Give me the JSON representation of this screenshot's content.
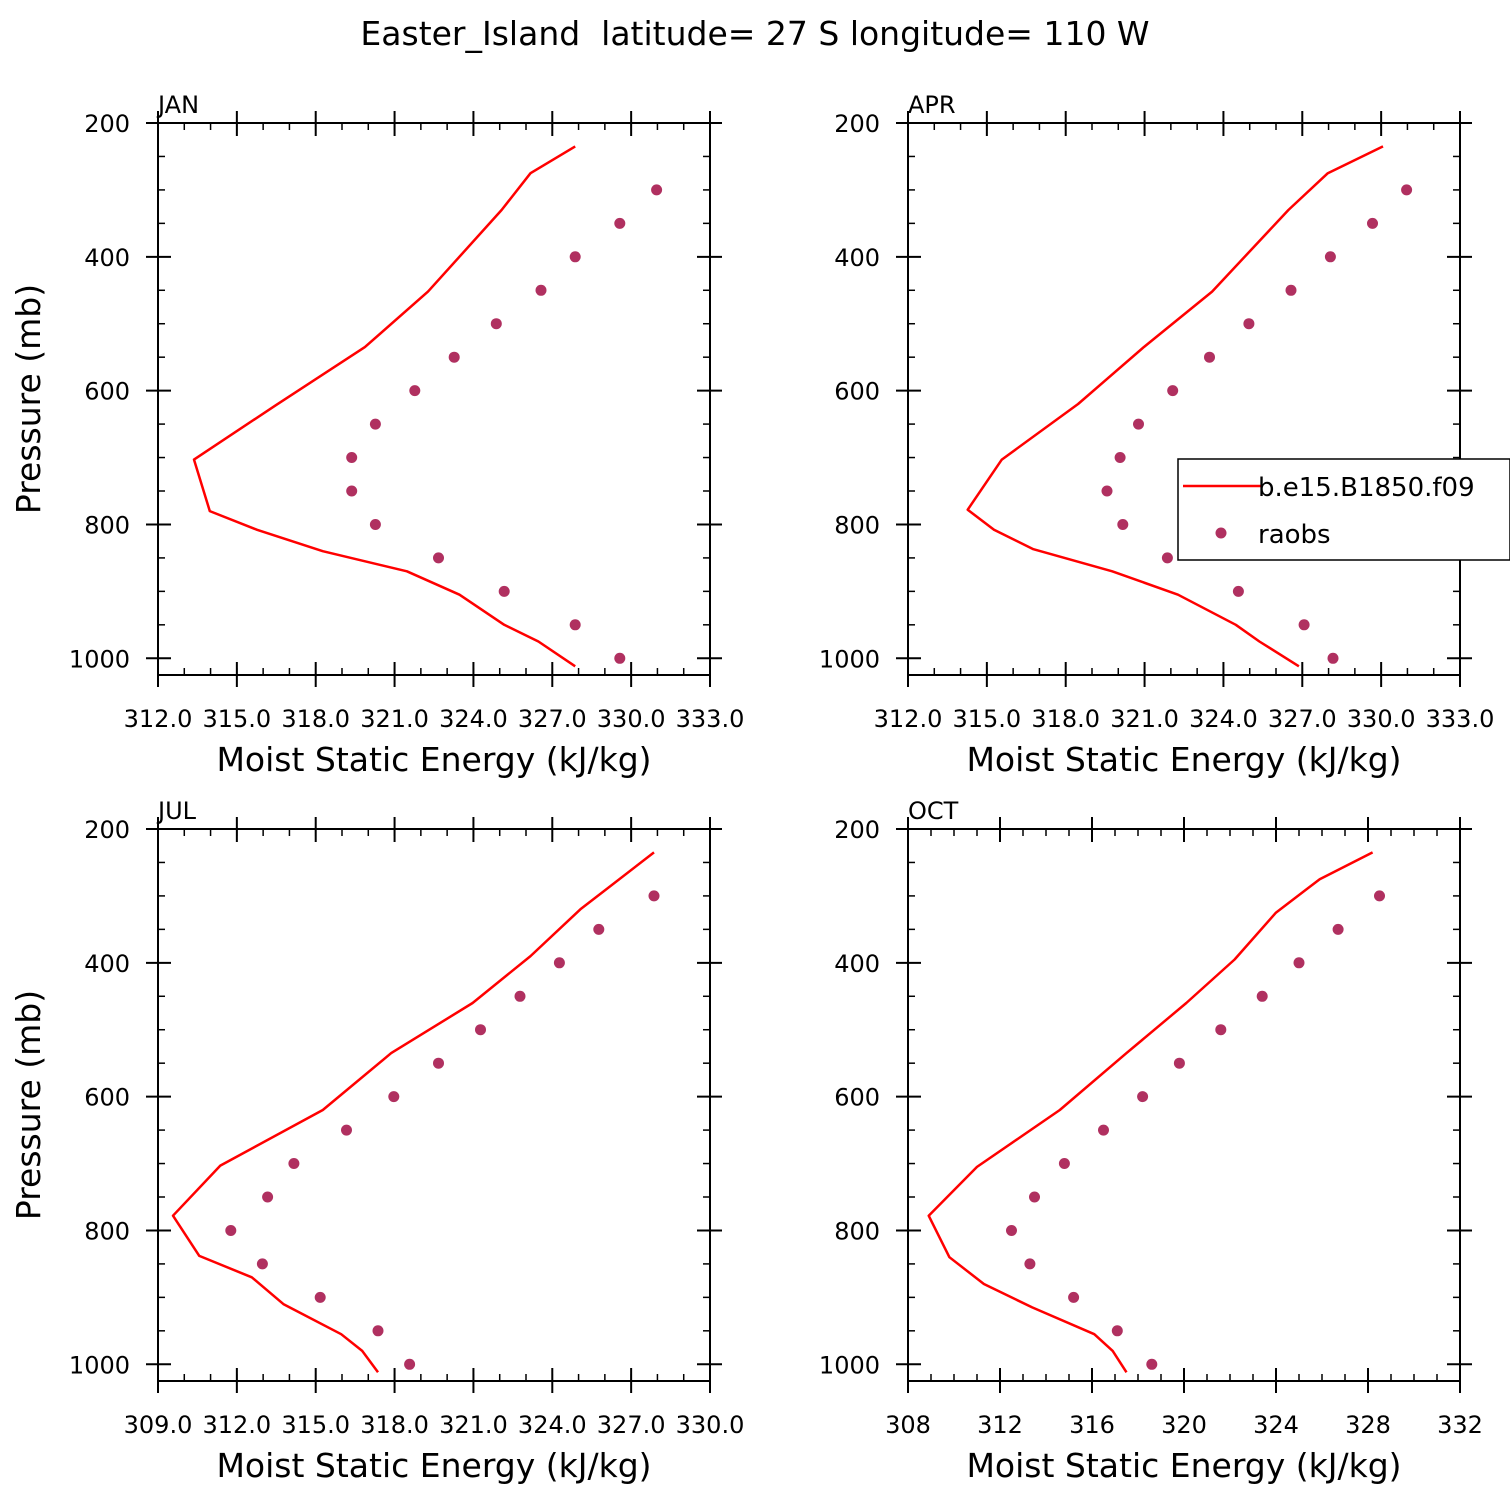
{
  "figure": {
    "title": "Easter_Island  latitude= 27 S longitude= 110 W"
  },
  "colors": {
    "model": "#ff0000",
    "obs": "#b03060",
    "axis": "#000000"
  },
  "legend": {
    "model_label": "b.e15.B1850.f09",
    "obs_label": "raobs",
    "placement": "right of APR panel"
  },
  "chart_data": [
    {
      "type": "line",
      "panel": "JAN",
      "xlabel": "Moist Static Energy (kJ/kg)",
      "ylabel": "Pressure (mb)",
      "xlim": [
        312.03,
        333.03
      ],
      "ylim": [
        1025,
        200
      ],
      "xticks_major": [
        312.03,
        315.03,
        318.03,
        321.03,
        324.03,
        327.03,
        330.03,
        333.03
      ],
      "xtick_labels": [
        "312.0",
        "315.0",
        "318.0",
        "321.0",
        "324.0",
        "327.0",
        "330.0",
        "333.0"
      ],
      "xminor_step": 1,
      "yticks": [
        200,
        400,
        600,
        800,
        1000
      ],
      "ytick_labels": [
        "200",
        "400",
        "600",
        "800",
        "1000"
      ],
      "model": {
        "x": [
          327.9,
          326.5,
          325.2,
          323.5,
          321.5,
          318.3,
          315.8,
          314.0,
          313.4,
          316.5,
          319.9,
          322.3,
          325.1,
          326.2,
          327.9
        ],
        "p": [
          1012,
          975,
          950,
          905,
          870,
          840,
          808,
          780,
          703,
          622,
          535,
          452,
          330,
          275,
          235
        ]
      },
      "obs": {
        "x": [
          329.6,
          327.9,
          325.2,
          322.7,
          320.3,
          319.4,
          319.4,
          320.3,
          321.8,
          323.3,
          324.9,
          326.6,
          327.9,
          329.6,
          331.0
        ],
        "p": [
          1000,
          950,
          900,
          850,
          800,
          750,
          700,
          650,
          600,
          550,
          500,
          450,
          400,
          350,
          300
        ]
      }
    },
    {
      "type": "line",
      "panel": "APR",
      "xlabel": "Moist Static Energy (kJ/kg)",
      "ylabel": "",
      "xlim": [
        312.03,
        333.03
      ],
      "ylim": [
        1025,
        200
      ],
      "xticks_major": [
        312.03,
        315.03,
        318.03,
        321.03,
        324.03,
        327.03,
        330.03,
        333.03
      ],
      "xtick_labels": [
        "312.0",
        "315.0",
        "318.0",
        "321.0",
        "324.0",
        "327.0",
        "330.0",
        "333.0"
      ],
      "xminor_step": 1,
      "yticks": [
        200,
        400,
        600,
        800,
        1000
      ],
      "ytick_labels": [
        "200",
        "400",
        "600",
        "800",
        "1000"
      ],
      "model": {
        "x": [
          326.9,
          325.4,
          324.5,
          322.3,
          319.8,
          316.8,
          315.3,
          314.3,
          315.6,
          318.5,
          321.0,
          323.6,
          326.5,
          328.0,
          330.1
        ],
        "p": [
          1012,
          975,
          950,
          905,
          870,
          837,
          808,
          778,
          703,
          620,
          535,
          452,
          330,
          275,
          235
        ]
      },
      "obs": {
        "x": [
          328.2,
          327.1,
          324.6,
          321.9,
          320.2,
          319.6,
          320.1,
          320.8,
          322.1,
          323.5,
          325.0,
          326.6,
          328.1,
          329.7,
          331.0
        ],
        "p": [
          1000,
          950,
          900,
          850,
          800,
          750,
          700,
          650,
          600,
          550,
          500,
          450,
          400,
          350,
          300
        ]
      }
    },
    {
      "type": "line",
      "panel": "JUL",
      "xlabel": "Moist Static Energy (kJ/kg)",
      "ylabel": "Pressure (mb)",
      "xlim": [
        309.03,
        330.03
      ],
      "ylim": [
        1025,
        200
      ],
      "xticks_major": [
        309.03,
        312.03,
        315.03,
        318.03,
        321.03,
        324.03,
        327.03,
        330.03
      ],
      "xtick_labels": [
        "309.0",
        "312.0",
        "315.0",
        "318.0",
        "321.0",
        "324.0",
        "327.0",
        "330.0"
      ],
      "xminor_step": 1,
      "yticks": [
        200,
        400,
        600,
        800,
        1000
      ],
      "ytick_labels": [
        "200",
        "400",
        "600",
        "800",
        "1000"
      ],
      "model": {
        "x": [
          317.4,
          316.8,
          316.0,
          313.8,
          312.6,
          310.6,
          309.6,
          311.4,
          315.3,
          317.9,
          321.0,
          323.2,
          325.1,
          327.9
        ],
        "p": [
          1012,
          980,
          955,
          910,
          870,
          838,
          778,
          703,
          620,
          535,
          460,
          390,
          320,
          235
        ]
      },
      "obs": {
        "x": [
          318.6,
          317.4,
          315.2,
          313.0,
          311.8,
          313.2,
          314.2,
          316.2,
          318.0,
          319.7,
          321.3,
          322.8,
          324.3,
          325.8,
          327.9
        ],
        "p": [
          1000,
          950,
          900,
          850,
          800,
          750,
          700,
          650,
          600,
          550,
          500,
          450,
          400,
          350,
          300
        ]
      }
    },
    {
      "type": "line",
      "panel": "OCT",
      "xlabel": "Moist Static Energy (kJ/kg)",
      "ylabel": "",
      "xlim": [
        308,
        332
      ],
      "ylim": [
        1025,
        200
      ],
      "xticks_major": [
        308,
        312,
        316,
        320,
        324,
        328,
        332
      ],
      "xtick_labels": [
        "308",
        "312",
        "316",
        "320",
        "324",
        "328",
        "332"
      ],
      "xminor_step": 1,
      "yticks": [
        200,
        400,
        600,
        800,
        1000
      ],
      "ytick_labels": [
        "200",
        "400",
        "600",
        "800",
        "1000"
      ],
      "model": {
        "x": [
          317.5,
          316.9,
          316.1,
          313.4,
          311.3,
          309.8,
          308.9,
          311.0,
          314.6,
          317.5,
          320.1,
          322.2,
          324.0,
          325.9,
          328.2
        ],
        "p": [
          1012,
          980,
          955,
          915,
          880,
          840,
          778,
          705,
          620,
          535,
          460,
          395,
          325,
          275,
          235
        ]
      },
      "obs": {
        "x": [
          318.6,
          317.1,
          315.2,
          313.3,
          312.5,
          313.5,
          314.8,
          316.5,
          318.2,
          319.8,
          321.6,
          323.4,
          325.0,
          326.7,
          328.5
        ],
        "p": [
          1000,
          950,
          900,
          850,
          800,
          750,
          700,
          650,
          600,
          550,
          500,
          450,
          400,
          350,
          300
        ]
      }
    }
  ]
}
